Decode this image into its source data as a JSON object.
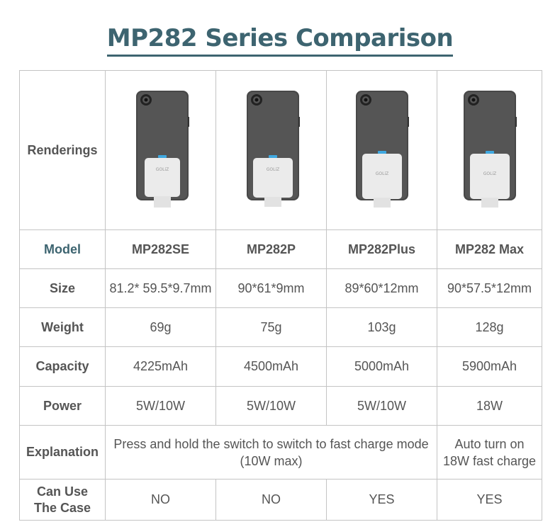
{
  "title": "MP282 Series Comparison",
  "row_labels": {
    "renderings": "Renderings",
    "model": "Model",
    "size": "Size",
    "weight": "Weight",
    "capacity": "Capacity",
    "power": "Power",
    "explanation": "Explanation",
    "can_use_line1": "Can Use",
    "can_use_line2": "The Case"
  },
  "products": [
    {
      "model": "MP282SE",
      "size": "81.2* 59.5*9.7mm",
      "weight": "69g",
      "capacity": "4225mAh",
      "power": "5W/10W",
      "can_use_case": "NO",
      "brand_mark": "GOLiZ"
    },
    {
      "model": "MP282P",
      "size": "90*61*9mm",
      "weight": "75g",
      "capacity": "4500mAh",
      "power": "5W/10W",
      "can_use_case": "NO",
      "brand_mark": "GOLiZ"
    },
    {
      "model": "MP282Plus",
      "size": "89*60*12mm",
      "weight": "103g",
      "capacity": "5000mAh",
      "power": "5W/10W",
      "can_use_case": "YES",
      "brand_mark": "GOLiZ"
    },
    {
      "model": "MP282 Max",
      "size": "90*57.5*12mm",
      "weight": "128g",
      "capacity": "5900mAh",
      "power": "18W",
      "can_use_case": "YES",
      "brand_mark": "GOLiZ"
    }
  ],
  "explanation": {
    "shared_line1": "Press and hold the switch to switch to fast charge mode",
    "shared_line2": "(10W max)",
    "max_line1": "Auto turn on",
    "max_line2": "18W fast charge"
  },
  "colors": {
    "accent": "#3d6470",
    "border": "#c4c4c4",
    "text": "#555555",
    "phone_body": "#4a4a4a",
    "power_bank": "#ececec",
    "indicator": "#3fa8e0"
  }
}
